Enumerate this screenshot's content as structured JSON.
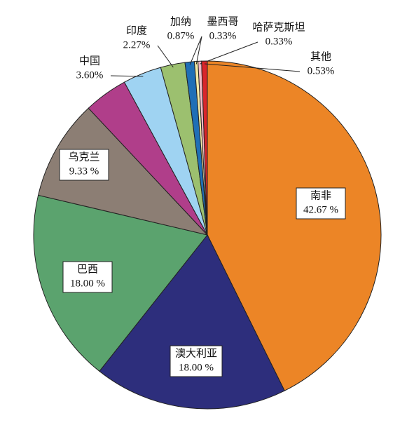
{
  "chart_data": {
    "type": "pie",
    "categories": [
      "南非",
      "澳大利亚",
      "巴西",
      "乌克兰",
      null,
      "中国",
      "印度",
      "加纳",
      "墨西哥",
      "哈萨克斯坦",
      "其他"
    ],
    "values": [
      42.67,
      18.0,
      18.0,
      9.33,
      4.07,
      3.6,
      2.27,
      0.87,
      0.33,
      0.33,
      0.53
    ],
    "value_labels": [
      "42.67 %",
      "18.00 %",
      "18.00 %",
      "9.33 %",
      null,
      "3.60%",
      "2.27%",
      "0.87%",
      "0.33%",
      "0.33%",
      "0.53%"
    ],
    "colors": [
      "#ec8526",
      "#2d2e7c",
      "#5ba36e",
      "#8c7e74",
      "#b03e8a",
      "#9fd3f2",
      "#9cc06f",
      "#1f6fb6",
      "#f3eaa6",
      "#f2b8c6",
      "#d9262b"
    ]
  }
}
